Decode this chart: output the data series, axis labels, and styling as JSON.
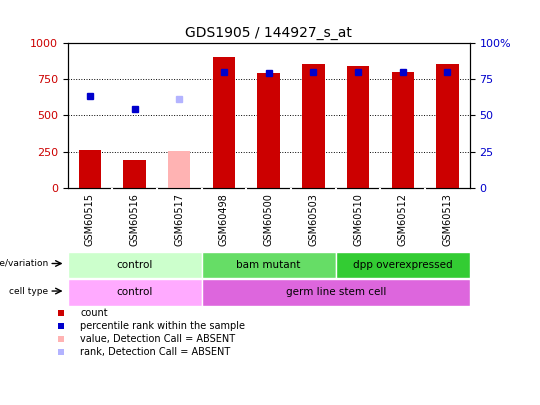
{
  "title": "GDS1905 / 144927_s_at",
  "samples": [
    "GSM60515",
    "GSM60516",
    "GSM60517",
    "GSM60498",
    "GSM60500",
    "GSM60503",
    "GSM60510",
    "GSM60512",
    "GSM60513"
  ],
  "count_values": [
    260,
    195,
    null,
    900,
    790,
    855,
    840,
    800,
    855
  ],
  "count_absent": [
    null,
    null,
    255,
    null,
    null,
    null,
    null,
    null,
    null
  ],
  "percentile_values": [
    63,
    54.5,
    null,
    80,
    79,
    80,
    79.5,
    80,
    80
  ],
  "percentile_absent": [
    null,
    null,
    61,
    null,
    null,
    null,
    null,
    null,
    null
  ],
  "ylim_left": [
    0,
    1000
  ],
  "ylim_right": [
    0,
    100
  ],
  "yticks_left": [
    0,
    250,
    500,
    750,
    1000
  ],
  "yticks_right": [
    0,
    25,
    50,
    75,
    100
  ],
  "ytick_right_labels": [
    "0",
    "25",
    "50",
    "75",
    "100%"
  ],
  "count_color": "#cc0000",
  "count_absent_color": "#ffb3b3",
  "percentile_color": "#0000cc",
  "percentile_absent_color": "#b3b3ff",
  "genotype_groups": [
    {
      "label": "control",
      "cols": [
        0,
        1,
        2
      ],
      "color": "#ccffcc"
    },
    {
      "label": "bam mutant",
      "cols": [
        3,
        4,
        5
      ],
      "color": "#66dd66"
    },
    {
      "label": "dpp overexpressed",
      "cols": [
        6,
        7,
        8
      ],
      "color": "#33cc33"
    }
  ],
  "celltype_groups": [
    {
      "label": "control",
      "cols": [
        0,
        1,
        2
      ],
      "color": "#ffaaff"
    },
    {
      "label": "germ line stem cell",
      "cols": [
        3,
        4,
        5,
        6,
        7,
        8
      ],
      "color": "#dd66dd"
    }
  ],
  "sample_bg_color": "#cccccc",
  "legend_items": [
    {
      "label": "count",
      "color": "#cc0000"
    },
    {
      "label": "percentile rank within the sample",
      "color": "#0000cc"
    },
    {
      "label": "value, Detection Call = ABSENT",
      "color": "#ffb3b3"
    },
    {
      "label": "rank, Detection Call = ABSENT",
      "color": "#b3b3ff"
    }
  ]
}
